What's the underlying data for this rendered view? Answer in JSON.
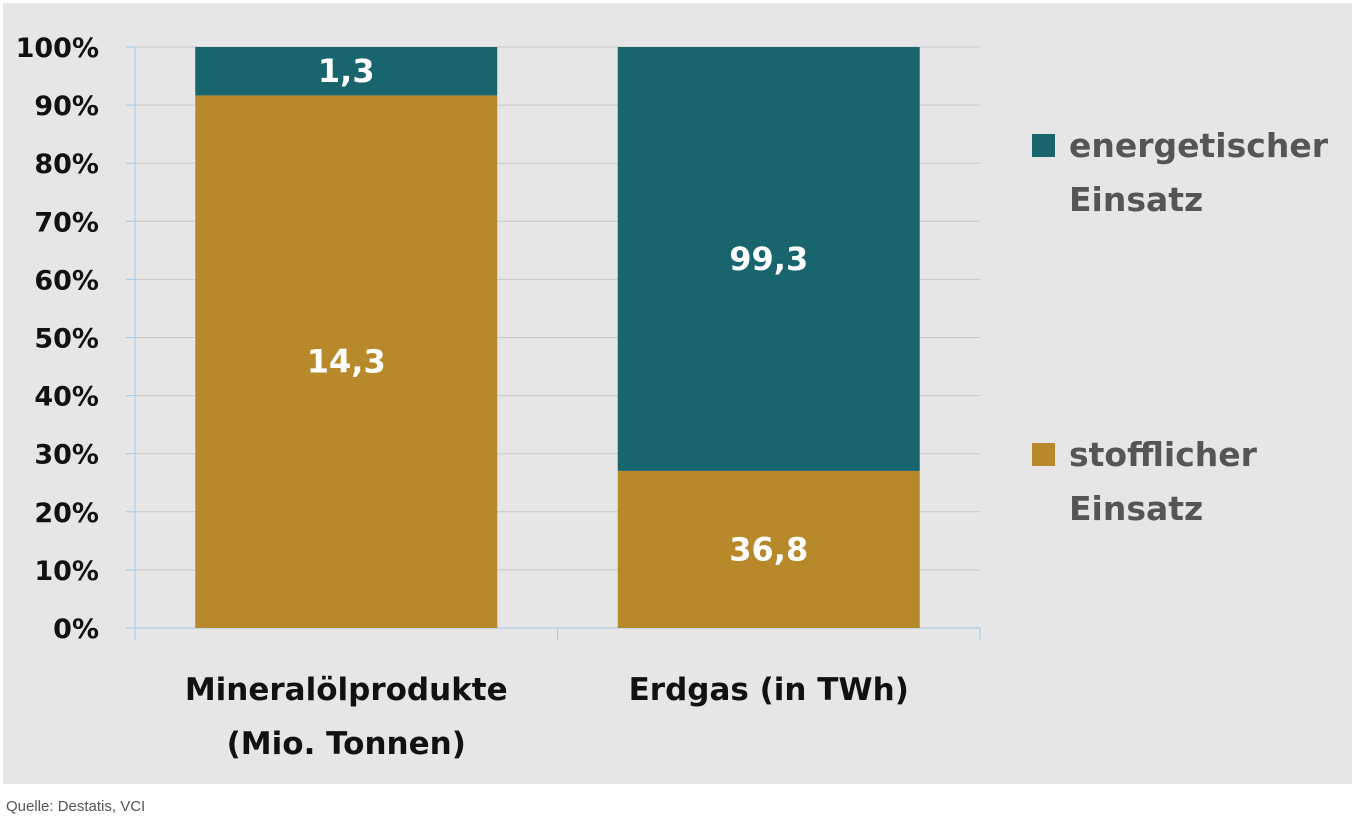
{
  "chart_data": {
    "type": "bar",
    "stacked": "percent",
    "categories": [
      [
        "Mineralölprodukte",
        "(Mio. Tonnen)"
      ],
      [
        "Erdgas (in TWh)"
      ]
    ],
    "series": [
      {
        "name": "stofflicher Einsatz",
        "values": [
          14.3,
          36.8
        ],
        "labels": [
          "14,3",
          "36,8"
        ],
        "color": "#b8892a"
      },
      {
        "name": "energetischer Einsatz",
        "values": [
          1.3,
          99.3
        ],
        "labels": [
          "1,3",
          "99,3"
        ],
        "color": "#18656d"
      }
    ],
    "legend": [
      {
        "series": 1,
        "lines": [
          "energetischer",
          "Einsatz"
        ]
      },
      {
        "series": 0,
        "lines": [
          "stofflicher",
          "Einsatz"
        ]
      }
    ],
    "ylim": [
      0,
      100
    ],
    "yticks": [
      "0%",
      "10%",
      "20%",
      "30%",
      "40%",
      "50%",
      "60%",
      "70%",
      "80%",
      "90%",
      "100%"
    ],
    "grid": true,
    "legend_position": "right",
    "colors": {
      "background": "#e6e6e6",
      "grid": "#c8c8c8",
      "axis": "#9ec9e8"
    }
  },
  "source": "Quelle: Destatis, VCI"
}
